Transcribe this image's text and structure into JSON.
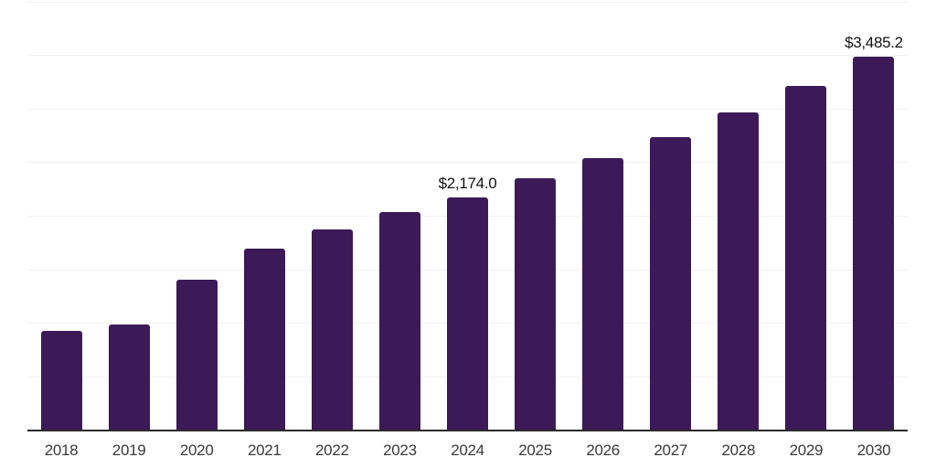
{
  "chart_data": {
    "type": "bar",
    "title": "",
    "xlabel": "",
    "ylabel": "",
    "categories": [
      "2018",
      "2019",
      "2020",
      "2021",
      "2022",
      "2023",
      "2024",
      "2025",
      "2026",
      "2027",
      "2028",
      "2029",
      "2030"
    ],
    "values": [
      930,
      990,
      1405,
      1700,
      1880,
      2035,
      2174.0,
      2355,
      2545,
      2740,
      2970,
      3215,
      3485.2
    ],
    "ylim": [
      0,
      4000
    ],
    "grid_step": 500,
    "grid": "horizontal-only",
    "legend": "none",
    "y_axis_tick_labels_visible": false,
    "annotations": [
      {
        "category_index": 6,
        "text": "$2,174.0"
      },
      {
        "category_index": 12,
        "text": "$3,485.2"
      }
    ]
  },
  "colors": {
    "background": "#FFFFFF",
    "bar": "#3C1A57",
    "gridline": "#F1F1F1",
    "axis_line": "#2B2B2B",
    "tick_label": "#3A3A3A",
    "data_label": "#121212"
  }
}
